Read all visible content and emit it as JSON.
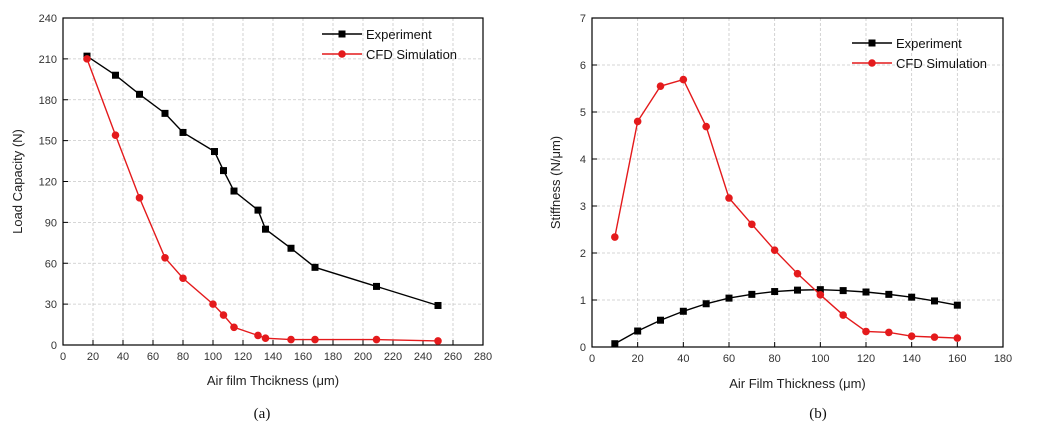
{
  "chart_data": [
    {
      "type": "line",
      "xlabel": "Air film Thcikness (μm)",
      "ylabel": "Load Capacity (N)",
      "xlim": [
        0,
        280
      ],
      "ylim": [
        0,
        240
      ],
      "xticks": [
        "0",
        "20",
        "40",
        "60",
        "80",
        "100",
        "120",
        "140",
        "160",
        "180",
        "200",
        "220",
        "240",
        "260",
        "280"
      ],
      "yticks": [
        "0",
        "30",
        "60",
        "90",
        "120",
        "150",
        "180",
        "210",
        "240"
      ],
      "grid": true,
      "legend_position": "top-right",
      "panel_label": "(a)",
      "series": [
        {
          "name": "Experiment",
          "color": "#000000",
          "marker": "square",
          "x": [
            16,
            35,
            51,
            68,
            80,
            101,
            107,
            114,
            130,
            135,
            152,
            168,
            209,
            250
          ],
          "y": [
            212,
            198,
            184,
            170,
            156,
            142,
            128,
            113,
            99,
            85,
            71,
            57,
            43,
            29
          ]
        },
        {
          "name": "CFD Simulation",
          "color": "#e41a1c",
          "marker": "circle",
          "x": [
            16,
            35,
            51,
            68,
            80,
            100,
            107,
            114,
            130,
            135,
            152,
            168,
            209,
            250
          ],
          "y": [
            210,
            154,
            108,
            64,
            49,
            30,
            22,
            13,
            7,
            5,
            4,
            4,
            4,
            3
          ]
        }
      ]
    },
    {
      "type": "line",
      "xlabel": "Air Film Thickness (μm)",
      "ylabel": "Stiffness (N/μm)",
      "xlim": [
        0,
        180
      ],
      "ylim": [
        0,
        7
      ],
      "xticks": [
        "0",
        "20",
        "40",
        "60",
        "80",
        "100",
        "120",
        "140",
        "160",
        "180"
      ],
      "yticks": [
        "0",
        "1",
        "2",
        "3",
        "4",
        "5",
        "6",
        "7"
      ],
      "grid": true,
      "legend_position": "top-right",
      "panel_label": "(b)",
      "series": [
        {
          "name": "Experiment",
          "color": "#000000",
          "marker": "square",
          "x": [
            10,
            20,
            30,
            40,
            50,
            60,
            70,
            80,
            90,
            100,
            110,
            120,
            130,
            140,
            150,
            160
          ],
          "y": [
            0.07,
            0.34,
            0.57,
            0.76,
            0.92,
            1.04,
            1.12,
            1.18,
            1.21,
            1.22,
            1.2,
            1.17,
            1.12,
            1.06,
            0.98,
            0.89
          ]
        },
        {
          "name": "CFD Simulation",
          "color": "#e41a1c",
          "marker": "circle",
          "x": [
            10,
            20,
            30,
            40,
            50,
            60,
            70,
            80,
            90,
            100,
            110,
            120,
            130,
            140,
            150,
            160
          ],
          "y": [
            2.34,
            4.8,
            5.55,
            5.69,
            4.69,
            3.17,
            2.61,
            2.06,
            1.56,
            1.11,
            0.68,
            0.33,
            0.31,
            0.23,
            0.21,
            0.19
          ]
        }
      ]
    }
  ]
}
